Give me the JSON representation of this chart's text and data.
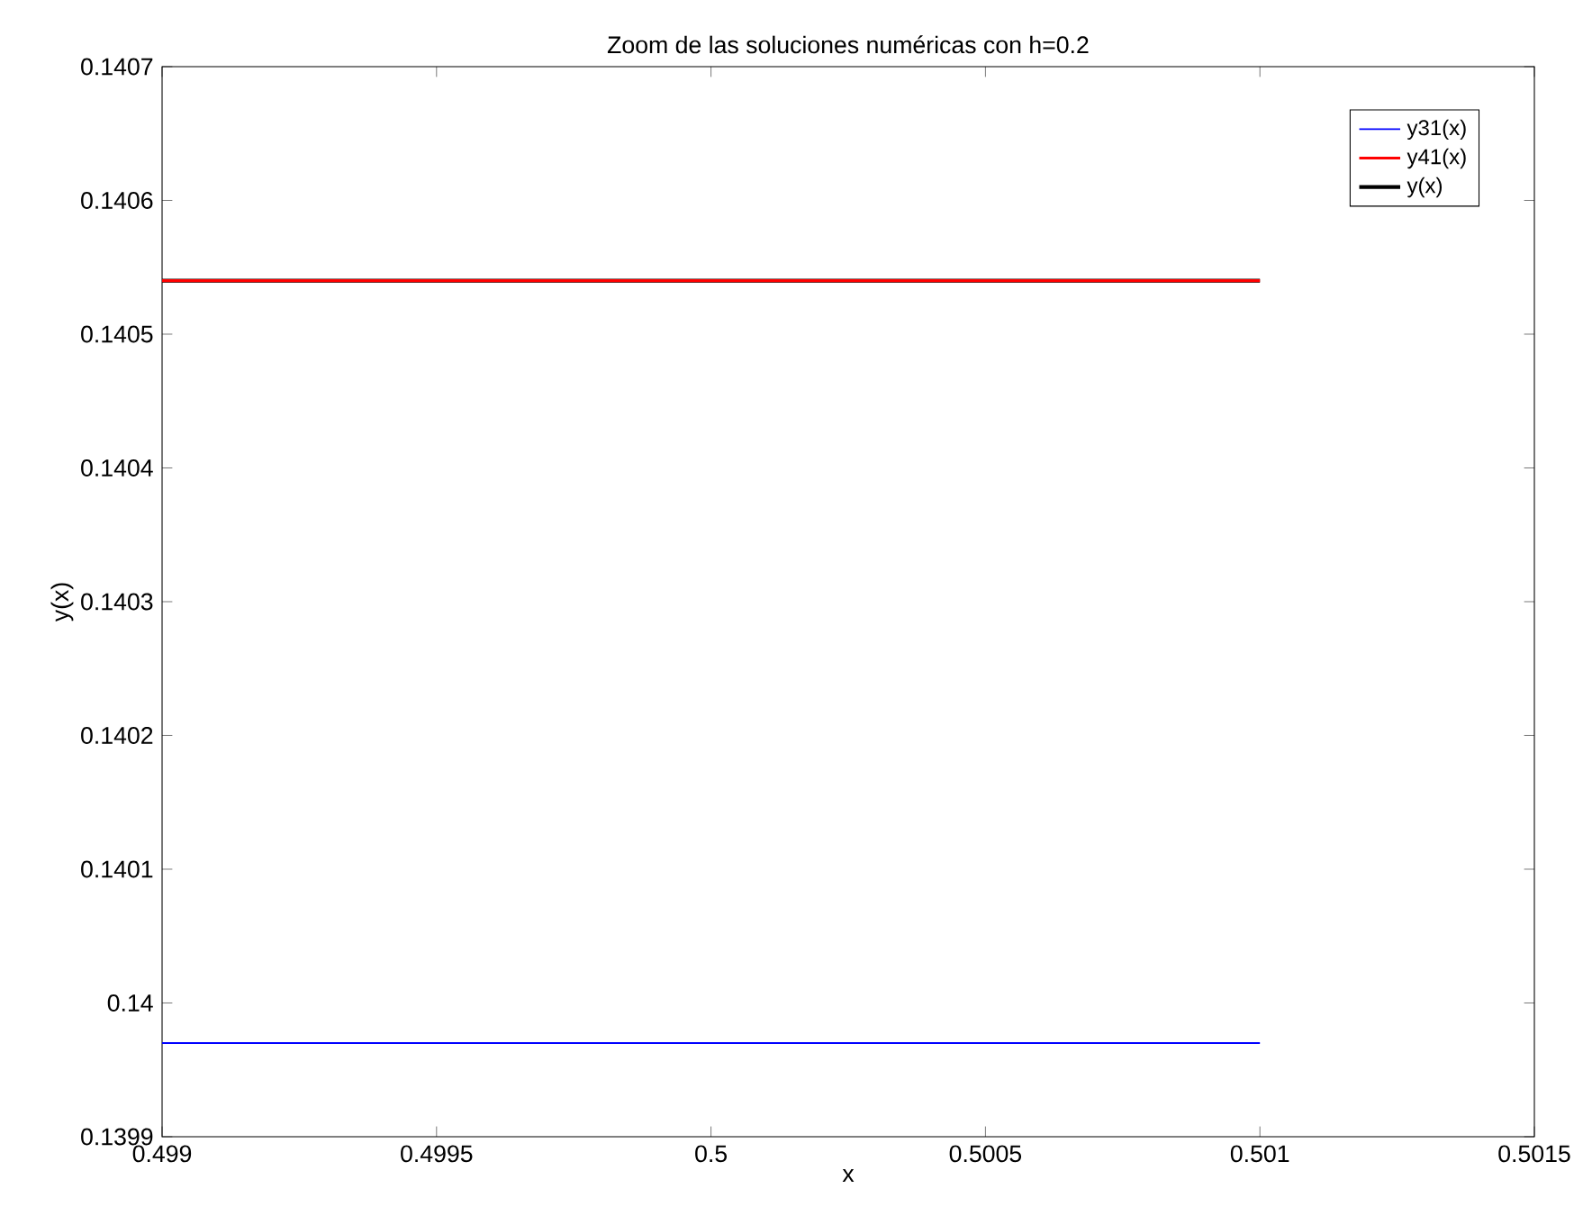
{
  "chart_data": {
    "type": "line",
    "title": "Zoom de las soluciones numéricas con h=0.2",
    "xlabel": "x",
    "ylabel": "y(x)",
    "x": [
      0.499,
      0.501
    ],
    "series": [
      {
        "name": "y31(x)",
        "color": "#0000ff",
        "values": [
          0.13997,
          0.13997
        ]
      },
      {
        "name": "y41(x)",
        "color": "#ff0000",
        "values": [
          0.14054,
          0.14054
        ]
      },
      {
        "name": "y(x)",
        "color": "#000000",
        "values": [
          0.14054,
          0.14054
        ]
      }
    ],
    "xlim": [
      0.499,
      0.5015
    ],
    "ylim": [
      0.1399,
      0.1407
    ],
    "xticks": [
      0.499,
      0.4995,
      0.5,
      0.5005,
      0.501,
      0.5015
    ],
    "yticks": [
      0.1399,
      0.14,
      0.1401,
      0.1402,
      0.1403,
      0.1404,
      0.1405,
      0.1406,
      0.1407
    ],
    "legend": "top right",
    "grid": false,
    "marker": "none",
    "line_style": "solid"
  }
}
